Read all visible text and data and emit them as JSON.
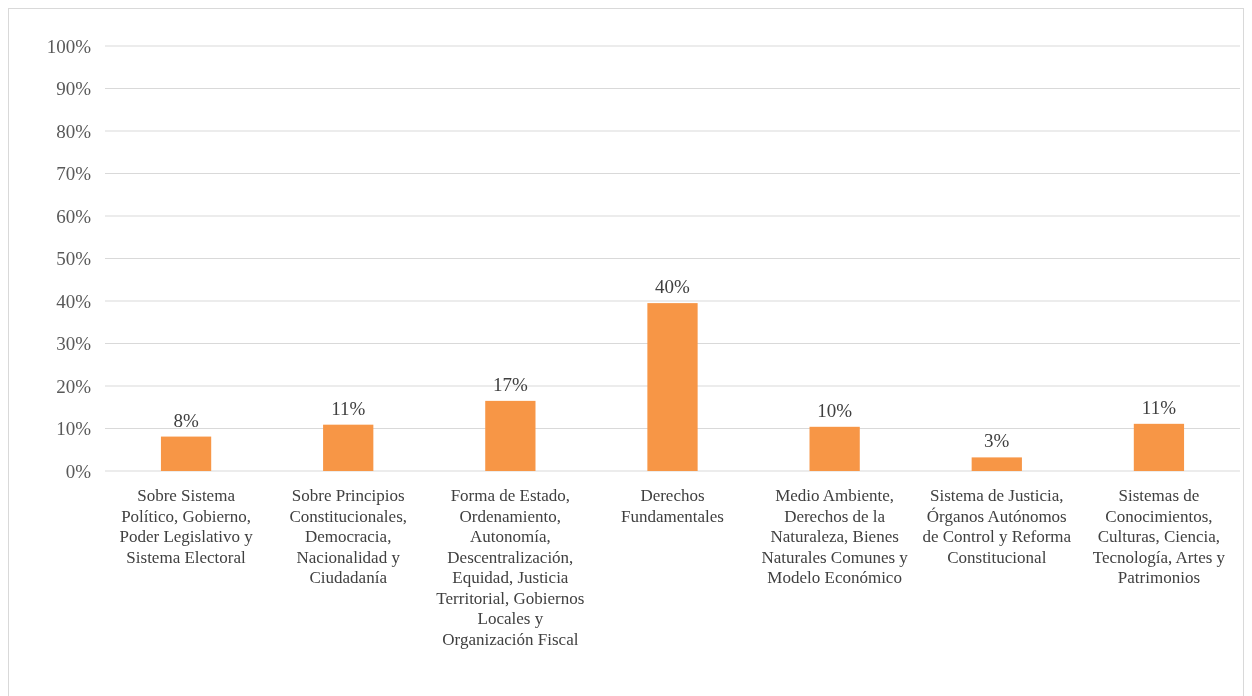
{
  "chart_data": {
    "type": "bar",
    "categories": [
      "Sobre Sistema Político, Gobierno, Poder Legislativo y Sistema Electoral",
      "Sobre Principios Constitucionales, Democracia, Nacionalidad y Ciudadanía",
      "Forma de Estado, Ordenamiento, Autonomía, Descentralización, Equidad, Justicia Territorial, Gobiernos Locales y Organización Fiscal",
      "Derechos Fundamentales",
      "Medio Ambiente, Derechos de la Naturaleza, Bienes Naturales Comunes y Modelo Económico",
      "Sistema de Justicia, Órganos Autónomos de Control y Reforma Constitucional",
      "Sistemas de Conocimientos, Culturas, Ciencia, Tecnología, Artes y Patrimonios"
    ],
    "values": [
      8.1,
      10.9,
      16.5,
      39.5,
      10.4,
      3.2,
      11.1
    ],
    "value_labels": [
      "8%",
      "11%",
      "17%",
      "40%",
      "10%",
      "3%",
      "11%"
    ],
    "color": "#f79646",
    "ylim": [
      0,
      100
    ],
    "yticks": [
      {
        "value": 0,
        "label": "0%"
      },
      {
        "value": 10,
        "label": "10%"
      },
      {
        "value": 20,
        "label": "20%"
      },
      {
        "value": 30,
        "label": "30%"
      },
      {
        "value": 40,
        "label": "40%"
      },
      {
        "value": 50,
        "label": "50%"
      },
      {
        "value": 60,
        "label": "60%"
      },
      {
        "value": 70,
        "label": "70%"
      },
      {
        "value": 80,
        "label": "80%"
      },
      {
        "value": 90,
        "label": "90%"
      },
      {
        "value": 100,
        "label": "100%"
      }
    ],
    "grid": "y"
  }
}
